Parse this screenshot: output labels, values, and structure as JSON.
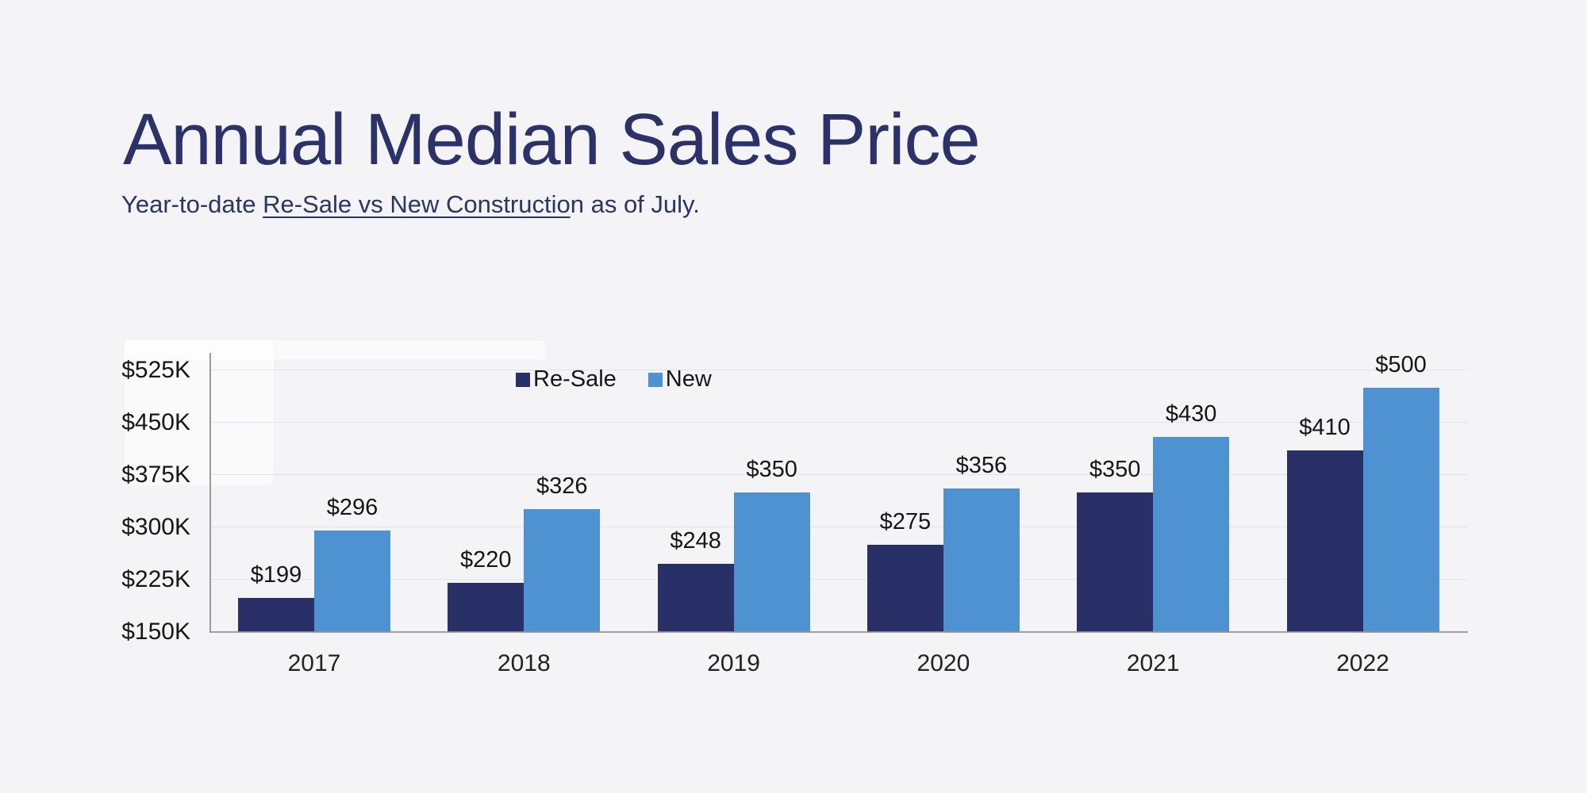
{
  "header": {
    "title": "Annual Median Sales Price",
    "subtitle": {
      "prefix": "Year-to-date ",
      "underlined": "Re-Sale vs New Constructio",
      "suffix": "n as of July.",
      "full": "Year-to-date Re-Sale vs New Construction as of July."
    }
  },
  "chart_data": {
    "type": "bar",
    "title": "Annual Median Sales Price",
    "subtitle": "Year-to-date Re-Sale vs New Construction as of July.",
    "categories": [
      "2017",
      "2018",
      "2019",
      "2020",
      "2021",
      "2022"
    ],
    "series": [
      {
        "name": "Re-Sale",
        "color": "#293067",
        "values": [
          199,
          220,
          248,
          275,
          350,
          410
        ]
      },
      {
        "name": "New",
        "color": "#4f92d1",
        "values": [
          296,
          326,
          350,
          356,
          430,
          500
        ]
      }
    ],
    "value_prefix": "$",
    "data_labels": [
      [
        "$199",
        "$220",
        "$248",
        "$275",
        "$350",
        "$410"
      ],
      [
        "$296",
        "$326",
        "$350",
        "$356",
        "$430",
        "$500"
      ]
    ],
    "ylabel": "",
    "xlabel": "",
    "ylim": [
      150,
      545
    ],
    "yticks": {
      "values": [
        150,
        225,
        300,
        375,
        450,
        525
      ],
      "labels": [
        "$150K",
        "$225K",
        "$300K",
        "$375K",
        "$450K",
        "$525K"
      ]
    },
    "grid": "horizontal",
    "legend_position": "top-center"
  },
  "colors": {
    "background": "#f4f4f6",
    "title_text": "#2b3269",
    "subtitle_text": "#2b3467",
    "resale_bar": "#293067",
    "new_bar": "#4f92d1",
    "gridline": "#dde4f1",
    "axis_line": "#8f9094",
    "label_text": "#161616"
  }
}
